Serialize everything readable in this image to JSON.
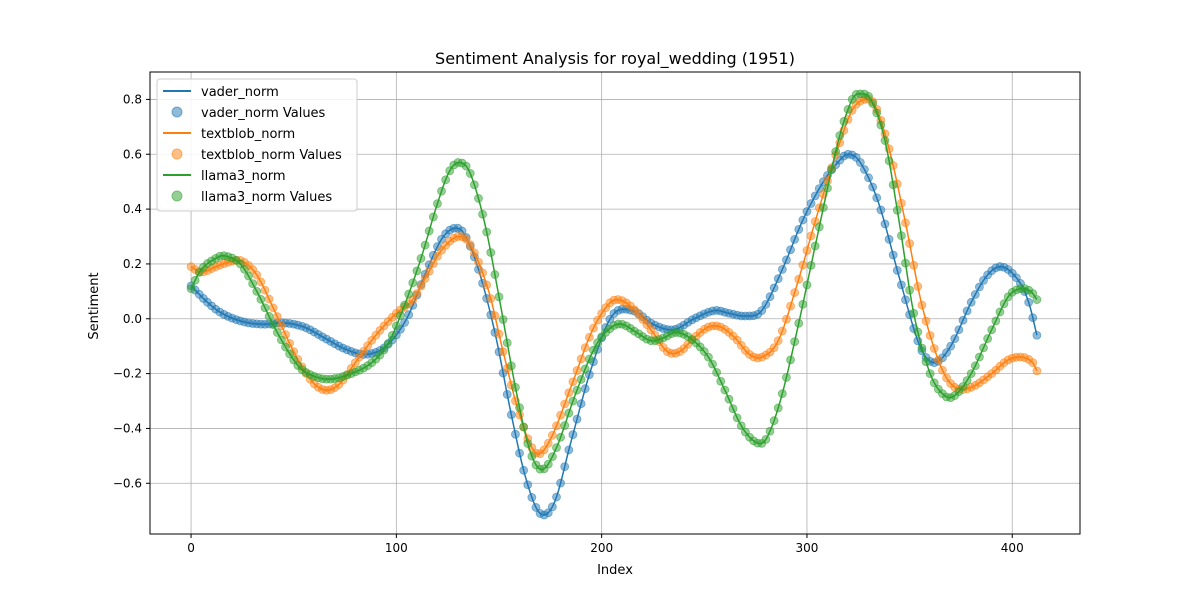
{
  "chart_data": {
    "type": "line",
    "title": "Sentiment Analysis for royal_wedding (1951)",
    "xlabel": "Index",
    "ylabel": "Sentiment",
    "xlim": [
      -20,
      433
    ],
    "ylim": [
      -0.785,
      0.9
    ],
    "xticks": [
      0,
      100,
      200,
      300,
      400
    ],
    "yticks": [
      -0.6,
      -0.4,
      -0.2,
      0.0,
      0.2,
      0.4,
      0.6,
      0.8
    ],
    "xtick_labels": [
      "0",
      "100",
      "200",
      "300",
      "400"
    ],
    "ytick_labels": [
      "−0.6",
      "−0.4",
      "−0.2",
      "0.0",
      "0.2",
      "0.4",
      "0.6",
      "0.8"
    ],
    "grid": true,
    "legend_position": "upper-left",
    "x_max_index": 412,
    "marker_step": 2,
    "series": [
      {
        "name": "vader_norm",
        "marker_name": "vader_norm Values",
        "color": "#1f77b4",
        "keypoints": [
          [
            0,
            0.12
          ],
          [
            8,
            0.06
          ],
          [
            15,
            0.02
          ],
          [
            25,
            -0.01
          ],
          [
            35,
            -0.02
          ],
          [
            45,
            -0.015
          ],
          [
            55,
            -0.03
          ],
          [
            65,
            -0.07
          ],
          [
            75,
            -0.11
          ],
          [
            85,
            -0.13
          ],
          [
            95,
            -0.1
          ],
          [
            105,
            0.0
          ],
          [
            115,
            0.18
          ],
          [
            122,
            0.29
          ],
          [
            128,
            0.33
          ],
          [
            133,
            0.31
          ],
          [
            140,
            0.18
          ],
          [
            148,
            -0.05
          ],
          [
            156,
            -0.35
          ],
          [
            163,
            -0.58
          ],
          [
            170,
            -0.71
          ],
          [
            177,
            -0.67
          ],
          [
            185,
            -0.45
          ],
          [
            195,
            -0.18
          ],
          [
            205,
            0.01
          ],
          [
            215,
            0.03
          ],
          [
            225,
            -0.02
          ],
          [
            235,
            -0.04
          ],
          [
            245,
            0.0
          ],
          [
            255,
            0.03
          ],
          [
            262,
            0.02
          ],
          [
            270,
            0.01
          ],
          [
            278,
            0.03
          ],
          [
            288,
            0.18
          ],
          [
            298,
            0.36
          ],
          [
            308,
            0.5
          ],
          [
            315,
            0.57
          ],
          [
            320,
            0.6
          ],
          [
            326,
            0.57
          ],
          [
            335,
            0.42
          ],
          [
            345,
            0.15
          ],
          [
            355,
            -0.1
          ],
          [
            362,
            -0.16
          ],
          [
            370,
            -0.1
          ],
          [
            380,
            0.06
          ],
          [
            388,
            0.16
          ],
          [
            395,
            0.19
          ],
          [
            403,
            0.14
          ],
          [
            408,
            0.06
          ],
          [
            412,
            -0.06
          ]
        ]
      },
      {
        "name": "textblob_norm",
        "marker_name": "textblob_norm Values",
        "color": "#ff7f0e",
        "keypoints": [
          [
            0,
            0.19
          ],
          [
            5,
            0.17
          ],
          [
            12,
            0.19
          ],
          [
            20,
            0.21
          ],
          [
            25,
            0.21
          ],
          [
            32,
            0.16
          ],
          [
            40,
            0.04
          ],
          [
            50,
            -0.12
          ],
          [
            58,
            -0.22
          ],
          [
            65,
            -0.26
          ],
          [
            72,
            -0.24
          ],
          [
            80,
            -0.16
          ],
          [
            90,
            -0.06
          ],
          [
            100,
            0.02
          ],
          [
            108,
            0.07
          ],
          [
            115,
            0.16
          ],
          [
            122,
            0.25
          ],
          [
            130,
            0.3
          ],
          [
            136,
            0.27
          ],
          [
            145,
            0.1
          ],
          [
            152,
            -0.12
          ],
          [
            160,
            -0.35
          ],
          [
            168,
            -0.49
          ],
          [
            175,
            -0.44
          ],
          [
            185,
            -0.25
          ],
          [
            195,
            -0.05
          ],
          [
            203,
            0.05
          ],
          [
            208,
            0.07
          ],
          [
            215,
            0.04
          ],
          [
            225,
            -0.05
          ],
          [
            232,
            -0.12
          ],
          [
            238,
            -0.12
          ],
          [
            245,
            -0.07
          ],
          [
            252,
            -0.03
          ],
          [
            258,
            -0.03
          ],
          [
            265,
            -0.07
          ],
          [
            272,
            -0.13
          ],
          [
            278,
            -0.14
          ],
          [
            286,
            -0.08
          ],
          [
            295,
            0.12
          ],
          [
            305,
            0.38
          ],
          [
            315,
            0.62
          ],
          [
            322,
            0.76
          ],
          [
            328,
            0.8
          ],
          [
            333,
            0.78
          ],
          [
            340,
            0.62
          ],
          [
            348,
            0.35
          ],
          [
            356,
            0.05
          ],
          [
            365,
            -0.17
          ],
          [
            372,
            -0.25
          ],
          [
            380,
            -0.25
          ],
          [
            390,
            -0.2
          ],
          [
            398,
            -0.15
          ],
          [
            405,
            -0.14
          ],
          [
            410,
            -0.16
          ],
          [
            412,
            -0.19
          ]
        ]
      },
      {
        "name": "llama3_norm",
        "marker_name": "llama3_norm Values",
        "color": "#2ca02c",
        "keypoints": [
          [
            0,
            0.11
          ],
          [
            5,
            0.18
          ],
          [
            12,
            0.22
          ],
          [
            16,
            0.23
          ],
          [
            24,
            0.2
          ],
          [
            32,
            0.1
          ],
          [
            42,
            -0.05
          ],
          [
            52,
            -0.17
          ],
          [
            60,
            -0.21
          ],
          [
            68,
            -0.22
          ],
          [
            78,
            -0.2
          ],
          [
            88,
            -0.16
          ],
          [
            96,
            -0.09
          ],
          [
            104,
            0.05
          ],
          [
            112,
            0.22
          ],
          [
            120,
            0.42
          ],
          [
            126,
            0.54
          ],
          [
            131,
            0.57
          ],
          [
            136,
            0.53
          ],
          [
            143,
            0.35
          ],
          [
            150,
            0.08
          ],
          [
            158,
            -0.25
          ],
          [
            165,
            -0.48
          ],
          [
            171,
            -0.55
          ],
          [
            178,
            -0.47
          ],
          [
            187,
            -0.28
          ],
          [
            197,
            -0.1
          ],
          [
            205,
            -0.03
          ],
          [
            210,
            -0.02
          ],
          [
            217,
            -0.05
          ],
          [
            224,
            -0.08
          ],
          [
            230,
            -0.07
          ],
          [
            236,
            -0.05
          ],
          [
            243,
            -0.07
          ],
          [
            252,
            -0.14
          ],
          [
            260,
            -0.26
          ],
          [
            268,
            -0.39
          ],
          [
            275,
            -0.45
          ],
          [
            280,
            -0.44
          ],
          [
            287,
            -0.3
          ],
          [
            295,
            -0.05
          ],
          [
            305,
            0.3
          ],
          [
            315,
            0.64
          ],
          [
            322,
            0.8
          ],
          [
            326,
            0.82
          ],
          [
            331,
            0.8
          ],
          [
            338,
            0.65
          ],
          [
            345,
            0.35
          ],
          [
            352,
            0.02
          ],
          [
            360,
            -0.2
          ],
          [
            367,
            -0.28
          ],
          [
            372,
            -0.28
          ],
          [
            380,
            -0.2
          ],
          [
            390,
            -0.04
          ],
          [
            398,
            0.08
          ],
          [
            404,
            0.11
          ],
          [
            409,
            0.1
          ],
          [
            412,
            0.07
          ]
        ]
      }
    ]
  }
}
